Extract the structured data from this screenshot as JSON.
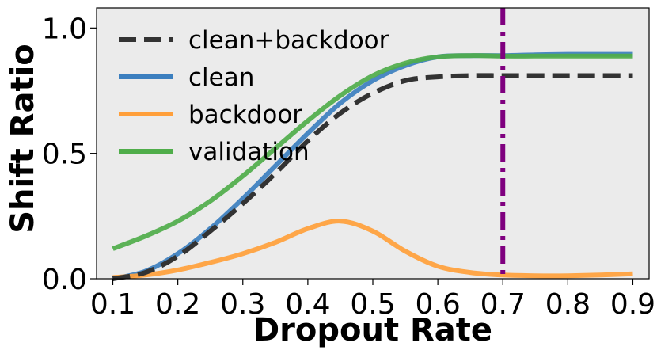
{
  "chart_data": {
    "type": "line",
    "xlabel": "Dropout Rate",
    "ylabel": "Shift Ratio",
    "xlim": [
      0.075,
      0.925
    ],
    "ylim": [
      0.0,
      1.08
    ],
    "x_ticks": [
      "0.1",
      "0.2",
      "0.3",
      "0.4",
      "0.5",
      "0.6",
      "0.7",
      "0.8",
      "0.9"
    ],
    "y_ticks": [
      "0.0",
      "0.5",
      "1.0"
    ],
    "grid": false,
    "background": "#ebebeb",
    "legend_position": "upper-left",
    "x": [
      0.1,
      0.15,
      0.2,
      0.25,
      0.3,
      0.35,
      0.4,
      0.45,
      0.5,
      0.55,
      0.6,
      0.65,
      0.7,
      0.75,
      0.8,
      0.85,
      0.9
    ],
    "series": [
      {
        "name": "clean+backdoor",
        "color": "#333333",
        "style": "dashed",
        "values": [
          0.0,
          0.025,
          0.09,
          0.19,
          0.3,
          0.42,
          0.55,
          0.66,
          0.74,
          0.79,
          0.805,
          0.81,
          0.81,
          0.81,
          0.81,
          0.81,
          0.81
        ]
      },
      {
        "name": "clean",
        "color": "#3c7fbf",
        "style": "solid",
        "values": [
          0.0,
          0.03,
          0.1,
          0.2,
          0.32,
          0.45,
          0.58,
          0.7,
          0.79,
          0.85,
          0.885,
          0.89,
          0.89,
          0.893,
          0.895,
          0.895,
          0.895
        ]
      },
      {
        "name": "backdoor",
        "color": "#ff9f3a",
        "style": "solid",
        "values": [
          0.005,
          0.015,
          0.035,
          0.065,
          0.1,
          0.145,
          0.2,
          0.23,
          0.19,
          0.11,
          0.05,
          0.025,
          0.015,
          0.012,
          0.012,
          0.015,
          0.02
        ]
      },
      {
        "name": "validation",
        "color": "#4fad4a",
        "style": "solid",
        "values": [
          0.12,
          0.17,
          0.23,
          0.31,
          0.41,
          0.52,
          0.63,
          0.73,
          0.81,
          0.86,
          0.885,
          0.89,
          0.888,
          0.888,
          0.888,
          0.888,
          0.888
        ]
      }
    ],
    "vline": {
      "x": 0.7,
      "color": "#7f007f",
      "style": "dashdot"
    }
  }
}
